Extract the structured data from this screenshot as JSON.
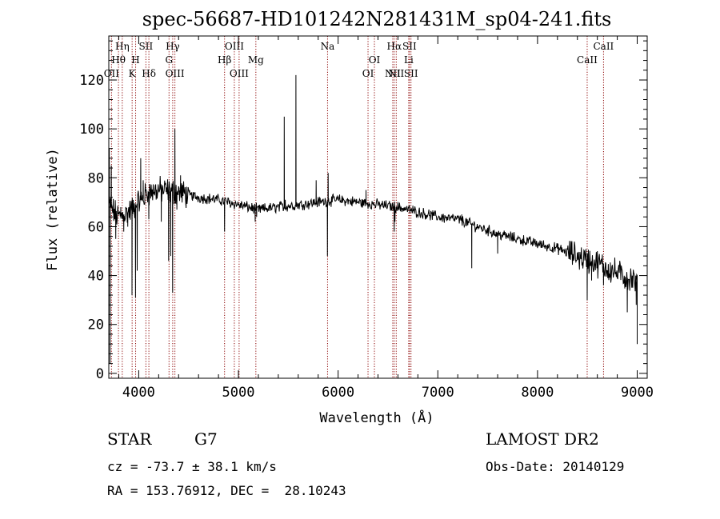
{
  "title": "spec-56687-HD101242N281431M_sp04-241.fits",
  "info": {
    "class": "STAR",
    "subclass": "G7",
    "release": "LAMOST DR2",
    "cz": "cz = -73.7 ± 38.1 km/s",
    "obs_date": "Obs-Date: 20140129",
    "coords": "RA = 153.76912, DEC =  28.10243"
  },
  "chart_data": {
    "type": "line",
    "title": "spec-56687-HD101242N281431M_sp04-241.fits",
    "xlabel": "Wavelength (Å)",
    "ylabel": "Flux (relative)",
    "xlim": [
      3700,
      9100
    ],
    "ylim": [
      -2,
      138
    ],
    "xticks": [
      4000,
      5000,
      6000,
      7000,
      8000,
      9000
    ],
    "yticks": [
      0,
      20,
      40,
      60,
      80,
      100,
      120
    ],
    "line_color": "#000000",
    "marker_color": "#8b0000",
    "continuum": {
      "x": [
        3700,
        3750,
        3800,
        3900,
        4000,
        4100,
        4200,
        4400,
        4600,
        4800,
        5000,
        5200,
        5400,
        5600,
        5800,
        6000,
        6200,
        6400,
        6600,
        6800,
        7000,
        7200,
        7400,
        7600,
        7800,
        8000,
        8200,
        8400,
        8600,
        8800,
        9000
      ],
      "y": [
        70,
        66,
        64,
        66,
        70,
        74,
        75,
        74,
        72,
        71,
        69,
        67,
        68,
        69,
        70,
        71,
        70,
        69,
        68,
        66,
        64,
        63,
        60,
        57,
        55,
        53,
        51,
        48,
        45,
        41,
        37
      ]
    },
    "features": [
      {
        "x": 3705,
        "y": 92
      },
      {
        "x": 3712,
        "y": 4
      },
      {
        "x": 3725,
        "y": 85
      },
      {
        "x": 3770,
        "y": 55
      },
      {
        "x": 3820,
        "y": 68
      },
      {
        "x": 3850,
        "y": 58
      },
      {
        "x": 3890,
        "y": 60
      },
      {
        "x": 3933,
        "y": 32
      },
      {
        "x": 3950,
        "y": 66
      },
      {
        "x": 3968,
        "y": 31
      },
      {
        "x": 3985,
        "y": 42
      },
      {
        "x": 4020,
        "y": 88
      },
      {
        "x": 4045,
        "y": 79
      },
      {
        "x": 4101,
        "y": 63
      },
      {
        "x": 4226,
        "y": 62
      },
      {
        "x": 4300,
        "y": 46
      },
      {
        "x": 4320,
        "y": 48
      },
      {
        "x": 4340,
        "y": 33
      },
      {
        "x": 4363,
        "y": 100
      },
      {
        "x": 4383,
        "y": 67
      },
      {
        "x": 4420,
        "y": 81
      },
      {
        "x": 4861,
        "y": 58
      },
      {
        "x": 5168,
        "y": 62
      },
      {
        "x": 5183,
        "y": 64
      },
      {
        "x": 5460,
        "y": 105
      },
      {
        "x": 5470,
        "y": 71
      },
      {
        "x": 5577,
        "y": 122
      },
      {
        "x": 5584,
        "y": 70
      },
      {
        "x": 5780,
        "y": 79
      },
      {
        "x": 5893,
        "y": 48
      },
      {
        "x": 5900,
        "y": 82
      },
      {
        "x": 6280,
        "y": 75
      },
      {
        "x": 6563,
        "y": 58
      },
      {
        "x": 6570,
        "y": 62
      },
      {
        "x": 7240,
        "y": 65
      },
      {
        "x": 7340,
        "y": 43
      },
      {
        "x": 7600,
        "y": 49
      },
      {
        "x": 8498,
        "y": 30
      },
      {
        "x": 8542,
        "y": 38
      },
      {
        "x": 8662,
        "y": 36
      },
      {
        "x": 8900,
        "y": 25
      },
      {
        "x": 8950,
        "y": 40
      },
      {
        "x": 8990,
        "y": 28
      }
    ],
    "lines": [
      {
        "x": 3727,
        "label": "OII",
        "row": 3
      },
      {
        "x": 3797,
        "label": "Hθ",
        "row": 2
      },
      {
        "x": 3835,
        "label": "Hη",
        "row": 1
      },
      {
        "x": 3934,
        "label": "K",
        "row": 3
      },
      {
        "x": 3969,
        "label": "H",
        "row": 2
      },
      {
        "x": 4072,
        "label": "SII",
        "row": 1
      },
      {
        "x": 4102,
        "label": "Hδ",
        "row": 3
      },
      {
        "x": 4304,
        "label": "G",
        "row": 2
      },
      {
        "x": 4341,
        "label": "Hγ",
        "row": 1
      },
      {
        "x": 4363,
        "label": "OIII",
        "row": 3
      },
      {
        "x": 4861,
        "label": "Hβ",
        "row": 2
      },
      {
        "x": 4959,
        "label": "OIII",
        "row": 1
      },
      {
        "x": 5007,
        "label": "OIII",
        "row": 3
      },
      {
        "x": 5175,
        "label": "Mg",
        "row": 2
      },
      {
        "x": 5894,
        "label": "Na",
        "row": 1
      },
      {
        "x": 6300,
        "label": "OI",
        "row": 3
      },
      {
        "x": 6364,
        "label": "OI",
        "row": 2
      },
      {
        "x": 6548,
        "label": "NII",
        "row": 3
      },
      {
        "x": 6563,
        "label": "Hα",
        "row": 1
      },
      {
        "x": 6583,
        "label": "NII",
        "row": 3
      },
      {
        "x": 6708,
        "label": "Li",
        "row": 2
      },
      {
        "x": 6716,
        "label": "SII",
        "row": 1
      },
      {
        "x": 6731,
        "label": "SII",
        "row": 3
      },
      {
        "x": 8498,
        "label": "CaII",
        "row": 2
      },
      {
        "x": 8662,
        "label": "CaII",
        "row": 1
      }
    ]
  }
}
